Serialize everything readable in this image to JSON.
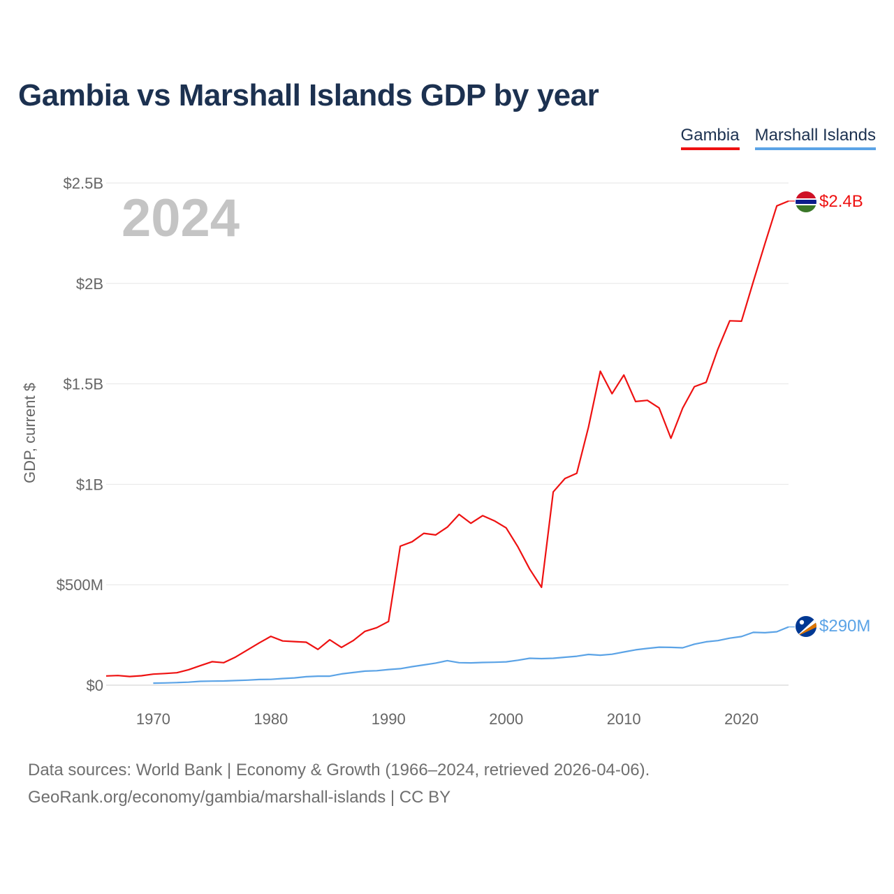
{
  "title": "Gambia vs Marshall Islands GDP by year",
  "footer": {
    "line1": "Data sources: World Bank | Economy & Growth (1966–2024, retrieved 2026-04-06).",
    "line2": "GeoRank.org/economy/gambia/marshall-islands | CC BY"
  },
  "legend": [
    {
      "name": "Gambia",
      "color": "#ee1111"
    },
    {
      "name": "Marshall Islands",
      "color": "#5ba3e6"
    }
  ],
  "chart_data": {
    "type": "line",
    "title": "Gambia vs Marshall Islands GDP by year",
    "ylabel": "GDP, current $",
    "xlabel": "",
    "year_watermark": "2024",
    "xlim": [
      1966,
      2024
    ],
    "ylim": [
      0,
      2500000000
    ],
    "grid": true,
    "legend_position": "top-right",
    "y_ticks": [
      {
        "value": 0,
        "label": "$0"
      },
      {
        "value": 500000000,
        "label": "$500M"
      },
      {
        "value": 1000000000,
        "label": "$1B"
      },
      {
        "value": 1500000000,
        "label": "$1.5B"
      },
      {
        "value": 2000000000,
        "label": "$2B"
      },
      {
        "value": 2500000000,
        "label": "$2.5B"
      }
    ],
    "x_ticks": [
      {
        "value": 1970,
        "label": "1970"
      },
      {
        "value": 1980,
        "label": "1980"
      },
      {
        "value": 1990,
        "label": "1990"
      },
      {
        "value": 2000,
        "label": "2000"
      },
      {
        "value": 2010,
        "label": "2010"
      },
      {
        "value": 2020,
        "label": "2020"
      }
    ],
    "series": [
      {
        "name": "Gambia",
        "color": "#ee1111",
        "end_label": "$2.4B",
        "flag_icon": "gambia-flag-icon",
        "start_year": 1966,
        "values": [
          46000000,
          48000000,
          43000000,
          47000000,
          55000000,
          58000000,
          62000000,
          77000000,
          97000000,
          117000000,
          112000000,
          140000000,
          175000000,
          210000000,
          243000000,
          220000000,
          217000000,
          214000000,
          178000000,
          226000000,
          188000000,
          222000000,
          268000000,
          286000000,
          317000000,
          692000000,
          714000000,
          756000000,
          748000000,
          787000000,
          850000000,
          806000000,
          844000000,
          818000000,
          783000000,
          688000000,
          578000000,
          487000000,
          962000000,
          1029000000,
          1055000000,
          1285000000,
          1563000000,
          1451000000,
          1544000000,
          1412000000,
          1418000000,
          1380000000,
          1229000000,
          1379000000,
          1486000000,
          1508000000,
          1673000000,
          1814000000,
          1812000000,
          2008000000,
          2199000000,
          2386000000,
          2410000000
        ]
      },
      {
        "name": "Marshall Islands",
        "color": "#5ba3e6",
        "end_label": "$290M",
        "flag_icon": "marshall-islands-flag-icon",
        "start_year": 1970,
        "values": [
          10000000,
          11000000,
          13000000,
          15000000,
          19000000,
          20000000,
          21000000,
          23000000,
          25000000,
          28000000,
          29000000,
          33000000,
          36000000,
          42000000,
          45000000,
          45000000,
          56000000,
          63000000,
          70000000,
          72000000,
          78000000,
          82000000,
          92000000,
          101000000,
          110000000,
          122000000,
          112000000,
          111000000,
          113000000,
          114000000,
          116000000,
          124000000,
          134000000,
          132000000,
          134000000,
          139000000,
          144000000,
          153000000,
          149000000,
          154000000,
          165000000,
          176000000,
          183000000,
          189000000,
          188000000,
          186000000,
          204000000,
          216000000,
          222000000,
          234000000,
          242000000,
          263000000,
          261000000,
          266000000,
          290000000
        ]
      }
    ]
  }
}
